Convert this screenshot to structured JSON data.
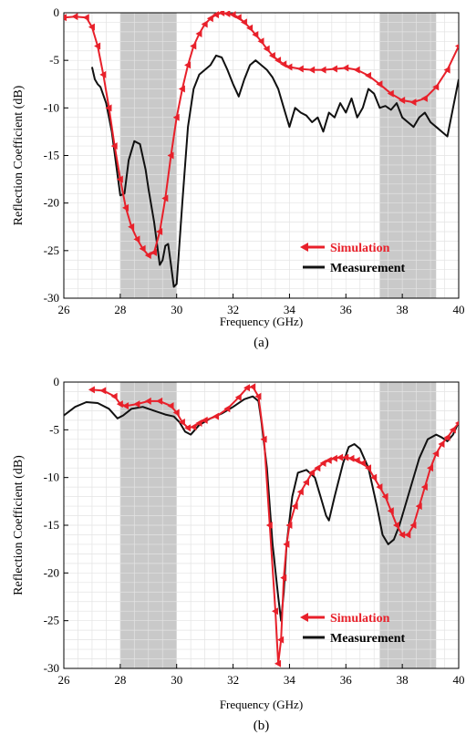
{
  "colors": {
    "simulation": "#e8202a",
    "measurement": "#111111",
    "band": "#c9c9c9",
    "grid": "#e3e3e3"
  },
  "chart_data": [
    {
      "type": "line",
      "panel": "(a)",
      "caption": "(a)",
      "xlabel": "Frequency (GHz)",
      "ylabel": "Reflection Coefficient (dB)",
      "xlim": [
        26,
        40
      ],
      "ylim": [
        -30,
        0
      ],
      "xticks": [
        26,
        28,
        30,
        32,
        34,
        36,
        38,
        40
      ],
      "yticks": [
        0,
        -5,
        -10,
        -15,
        -20,
        -25,
        -30
      ],
      "grid": true,
      "legend_position": "bottom-right",
      "shaded_bands": [
        [
          28,
          30
        ],
        [
          37.2,
          39.2
        ]
      ],
      "series": [
        {
          "name": "Simulation",
          "marker": "triangle-left",
          "x": [
            26,
            26.4,
            26.8,
            27.0,
            27.2,
            27.4,
            27.6,
            27.8,
            28.0,
            28.2,
            28.4,
            28.6,
            28.8,
            29.0,
            29.2,
            29.4,
            29.6,
            29.8,
            30.0,
            30.2,
            30.4,
            30.6,
            30.8,
            31.0,
            31.2,
            31.4,
            31.6,
            31.8,
            32.0,
            32.2,
            32.4,
            32.6,
            32.8,
            33.0,
            33.2,
            33.4,
            33.6,
            33.8,
            34.0,
            34.4,
            34.8,
            35.2,
            35.6,
            36.0,
            36.4,
            36.8,
            37.2,
            37.6,
            38.0,
            38.4,
            38.8,
            39.2,
            39.6,
            40.0
          ],
          "y": [
            -0.5,
            -0.4,
            -0.5,
            -1.5,
            -3.5,
            -6.5,
            -10.0,
            -14.0,
            -17.5,
            -20.5,
            -22.5,
            -23.8,
            -24.8,
            -25.5,
            -25.2,
            -23.0,
            -19.5,
            -15.0,
            -11.0,
            -8.0,
            -5.5,
            -3.5,
            -2.2,
            -1.2,
            -0.6,
            -0.2,
            0.0,
            -0.1,
            -0.2,
            -0.5,
            -1.0,
            -1.6,
            -2.3,
            -3.0,
            -3.8,
            -4.5,
            -5.0,
            -5.4,
            -5.7,
            -5.9,
            -6.0,
            -6.0,
            -5.9,
            -5.8,
            -6.0,
            -6.6,
            -7.5,
            -8.5,
            -9.2,
            -9.4,
            -9.0,
            -7.8,
            -6.0,
            -3.5
          ]
        },
        {
          "name": "Measurement",
          "x": [
            27.0,
            27.1,
            27.2,
            27.3,
            27.5,
            27.7,
            27.9,
            28.0,
            28.15,
            28.3,
            28.5,
            28.7,
            28.9,
            29.0,
            29.2,
            29.4,
            29.5,
            29.6,
            29.7,
            29.8,
            29.9,
            30.0,
            30.2,
            30.4,
            30.6,
            30.8,
            31.0,
            31.2,
            31.4,
            31.6,
            31.8,
            32.0,
            32.2,
            32.4,
            32.6,
            32.8,
            33.0,
            33.2,
            33.4,
            33.6,
            33.8,
            34.0,
            34.2,
            34.4,
            34.6,
            34.8,
            35.0,
            35.2,
            35.4,
            35.6,
            35.8,
            36.0,
            36.2,
            36.4,
            36.6,
            36.8,
            37.0,
            37.2,
            37.4,
            37.6,
            37.8,
            38.0,
            38.2,
            38.4,
            38.6,
            38.8,
            39.0,
            39.2,
            39.4,
            39.6,
            39.8,
            40.0
          ],
          "y": [
            -5.7,
            -7.0,
            -7.5,
            -7.8,
            -9.5,
            -12.5,
            -17.0,
            -19.2,
            -19.0,
            -15.5,
            -13.5,
            -13.8,
            -16.5,
            -18.5,
            -22.0,
            -26.5,
            -26.0,
            -24.5,
            -24.3,
            -26.5,
            -28.8,
            -28.5,
            -20.0,
            -12.0,
            -8.0,
            -6.5,
            -6.0,
            -5.5,
            -4.5,
            -4.7,
            -6.0,
            -7.5,
            -8.8,
            -7.0,
            -5.5,
            -5.0,
            -5.5,
            -6.0,
            -6.8,
            -8.0,
            -10.0,
            -12.0,
            -10.0,
            -10.5,
            -10.8,
            -11.5,
            -11.0,
            -12.5,
            -10.5,
            -11.0,
            -9.5,
            -10.5,
            -9.0,
            -11.0,
            -10.0,
            -8.0,
            -8.5,
            -10.0,
            -9.8,
            -10.2,
            -9.5,
            -11.0,
            -11.5,
            -12.0,
            -11.0,
            -10.5,
            -11.5,
            -12.0,
            -12.5,
            -13.0,
            -10.0,
            -7.0
          ]
        }
      ]
    },
    {
      "type": "line",
      "panel": "(b)",
      "caption": "(b)",
      "xlabel": "Frequency (GHz)",
      "ylabel": "Reflection Coefficient (dB)",
      "xlim": [
        26,
        40
      ],
      "ylim": [
        -30,
        0
      ],
      "xticks": [
        26,
        28,
        30,
        32,
        34,
        36,
        38,
        40
      ],
      "yticks": [
        0,
        -5,
        -10,
        -15,
        -20,
        -25,
        -30
      ],
      "grid": true,
      "legend_position": "bottom-right",
      "shaded_bands": [
        [
          28,
          30
        ],
        [
          37.2,
          39.2
        ]
      ],
      "series": [
        {
          "name": "Simulation",
          "marker": "triangle-left",
          "x": [
            27.0,
            27.4,
            27.8,
            28.0,
            28.2,
            28.6,
            29.0,
            29.4,
            29.8,
            30.0,
            30.2,
            30.4,
            30.6,
            30.8,
            31.0,
            31.4,
            31.8,
            32.2,
            32.5,
            32.7,
            32.9,
            33.1,
            33.3,
            33.5,
            33.6,
            33.7,
            33.8,
            33.9,
            34.0,
            34.2,
            34.4,
            34.6,
            34.8,
            35.0,
            35.2,
            35.4,
            35.6,
            35.8,
            36.0,
            36.2,
            36.4,
            36.6,
            36.8,
            37.0,
            37.2,
            37.4,
            37.6,
            37.8,
            38.0,
            38.2,
            38.4,
            38.6,
            38.8,
            39.0,
            39.2,
            39.4,
            39.6,
            39.8,
            40.0
          ],
          "y": [
            -0.8,
            -0.9,
            -1.5,
            -2.3,
            -2.5,
            -2.3,
            -2.0,
            -2.0,
            -2.5,
            -3.2,
            -4.2,
            -4.8,
            -4.7,
            -4.3,
            -4.0,
            -3.6,
            -2.8,
            -1.6,
            -0.6,
            -0.5,
            -1.5,
            -6.0,
            -15.0,
            -24.0,
            -29.5,
            -27.0,
            -20.5,
            -17.0,
            -15.0,
            -13.0,
            -11.5,
            -10.5,
            -9.5,
            -9.0,
            -8.5,
            -8.2,
            -8.0,
            -7.9,
            -7.9,
            -8.0,
            -8.2,
            -8.5,
            -9.0,
            -10.0,
            -11.0,
            -12.0,
            -13.5,
            -15.0,
            -16.0,
            -16.0,
            -15.0,
            -13.0,
            -11.0,
            -9.0,
            -7.5,
            -6.5,
            -5.8,
            -5.0,
            -4.3
          ]
        },
        {
          "name": "Measurement",
          "x": [
            26.0,
            26.4,
            26.8,
            27.2,
            27.6,
            27.9,
            28.1,
            28.4,
            28.8,
            29.2,
            29.6,
            29.9,
            30.1,
            30.3,
            30.5,
            30.8,
            31.2,
            31.6,
            32.0,
            32.4,
            32.7,
            32.9,
            33.0,
            33.2,
            33.4,
            33.6,
            33.7,
            33.8,
            33.9,
            34.1,
            34.3,
            34.6,
            34.9,
            35.1,
            35.3,
            35.4,
            35.6,
            35.9,
            36.1,
            36.3,
            36.5,
            36.8,
            37.1,
            37.3,
            37.5,
            37.7,
            37.9,
            38.1,
            38.3,
            38.6,
            38.9,
            39.2,
            39.4,
            39.6,
            39.8,
            40.0
          ],
          "y": [
            -3.5,
            -2.6,
            -2.1,
            -2.2,
            -2.8,
            -3.8,
            -3.5,
            -2.8,
            -2.6,
            -3.0,
            -3.4,
            -3.6,
            -4.2,
            -5.2,
            -5.5,
            -4.5,
            -3.8,
            -3.3,
            -2.6,
            -1.8,
            -1.5,
            -2.0,
            -4.0,
            -9.0,
            -17.0,
            -22.5,
            -25.0,
            -22.0,
            -17.0,
            -12.0,
            -9.5,
            -9.2,
            -10.0,
            -12.0,
            -14.0,
            -14.5,
            -12.0,
            -8.5,
            -6.8,
            -6.5,
            -7.0,
            -9.0,
            -13.0,
            -16.0,
            -17.0,
            -16.5,
            -15.0,
            -13.0,
            -11.0,
            -8.0,
            -6.0,
            -5.5,
            -5.8,
            -6.2,
            -5.5,
            -4.2
          ]
        }
      ]
    }
  ]
}
